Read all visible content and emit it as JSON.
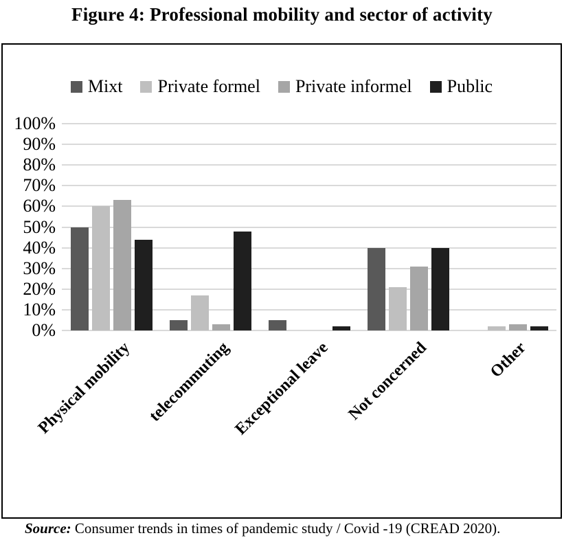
{
  "figure": {
    "title": "Figure 4: Professional mobility and sector of activity",
    "source_label": "Source:",
    "source_text": " Consumer trends in times of pandemic study / Covid -19 (CREAD 2020)."
  },
  "colors": {
    "mixt": "#595959",
    "private_formel": "#bfbfbf",
    "private_informel": "#a6a6a6",
    "public": "#1f1f1f",
    "gridline": "#d9d9d9",
    "box_border": "#000000",
    "text": "#000000"
  },
  "chart_data": {
    "type": "bar",
    "title": "",
    "xlabel": "",
    "ylabel": "",
    "categories": [
      "Physical mobility",
      "telecommuting",
      "Exceptional leave",
      "Not concerned",
      "Other"
    ],
    "series": [
      {
        "name": "Mixt",
        "color": "#595959",
        "values": [
          50,
          5,
          5,
          40,
          0
        ]
      },
      {
        "name": "Private formel",
        "color": "#bfbfbf",
        "values": [
          60,
          17,
          0,
          21,
          2
        ]
      },
      {
        "name": "Private informel",
        "color": "#a6a6a6",
        "values": [
          63,
          3,
          0,
          31,
          3
        ]
      },
      {
        "name": "Public",
        "color": "#1f1f1f",
        "values": [
          44,
          48,
          2,
          40,
          2
        ]
      }
    ],
    "ylim": [
      0,
      100
    ],
    "ytick_step": 10,
    "ytick_labels": [
      "0%",
      "10%",
      "20%",
      "30%",
      "40%",
      "50%",
      "60%",
      "70%",
      "80%",
      "90%",
      "100%"
    ],
    "grid": true,
    "legend_position": "top"
  }
}
